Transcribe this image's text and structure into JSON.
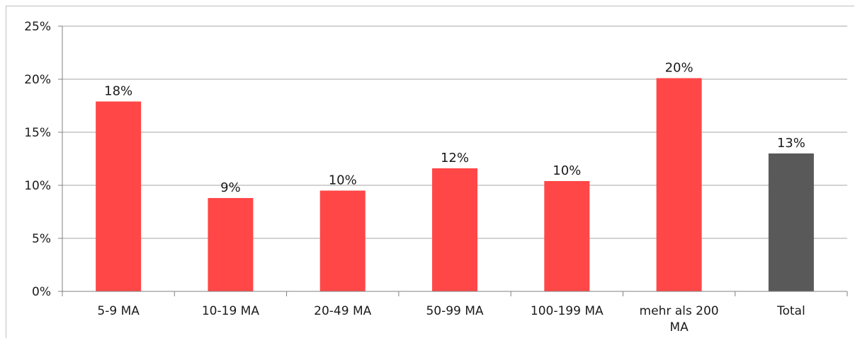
{
  "chart_data": {
    "type": "bar",
    "categories": [
      "5-9 MA",
      "10-19 MA",
      "20-49 MA",
      "50-99 MA",
      "100-199 MA",
      "mehr als 200 MA",
      "Total"
    ],
    "values": [
      17.9,
      8.8,
      9.5,
      11.6,
      10.4,
      20.1,
      13.0
    ],
    "data_labels": [
      "18%",
      "9%",
      "10%",
      "12%",
      "10%",
      "20%",
      "13%"
    ],
    "ylim": [
      0,
      25
    ],
    "yticks": [
      0,
      5,
      10,
      15,
      20,
      25
    ],
    "ytick_labels": [
      "0%",
      "5%",
      "10%",
      "15%",
      "20%",
      "25%"
    ],
    "grid": true,
    "legend": "none",
    "colors": {
      "bar": "#ff4747",
      "total_bar": "#595959",
      "grid": "#a6a6a6",
      "axis": "#808080"
    },
    "highlight_index": 6
  }
}
